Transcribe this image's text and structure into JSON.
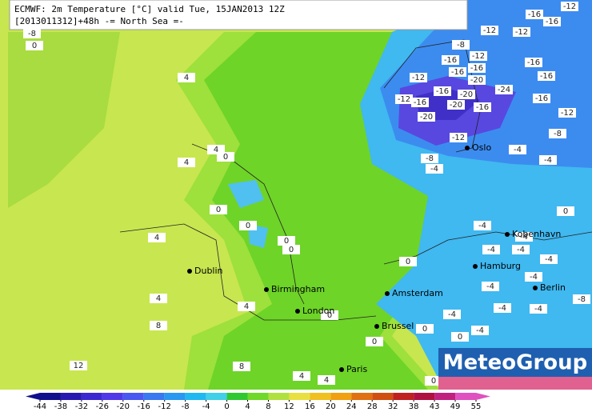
{
  "header": {
    "line1": "ECMWF: 2m Temperature [°C] valid Tue, 15JAN2013 12Z",
    "line2": "[2013011312]+48h -= North Sea =-"
  },
  "cities": [
    "Dublin",
    "Birmingham",
    "London",
    "Paris",
    "Brussel",
    "Amsterdam",
    "Hamburg",
    "Berlin",
    "Kobenhavn",
    "Oslo"
  ],
  "contour_labels": [
    -8,
    0,
    4,
    4,
    4,
    0,
    0,
    0,
    0,
    0,
    4,
    4,
    4,
    8,
    0,
    0,
    0,
    0,
    0,
    12,
    8,
    4,
    4,
    -12,
    -16,
    -16,
    -8,
    -12,
    -12,
    -12,
    -16,
    -12,
    -16,
    -16,
    -20,
    -16,
    -20,
    -24,
    -12,
    -16,
    -20,
    -20,
    -16,
    -16,
    -16,
    -16,
    -12,
    -8,
    -12,
    -8,
    -4,
    -4,
    -4,
    -4,
    -4,
    -4,
    -4,
    -4,
    -4,
    -4,
    -8,
    -4,
    -4,
    -4,
    -4,
    0,
    0
  ],
  "logo": "MeteoGroup",
  "colorbar": {
    "ticks": [
      -44,
      -38,
      -32,
      -26,
      -20,
      -16,
      -12,
      -8,
      -4,
      0,
      4,
      8,
      12,
      16,
      20,
      24,
      28,
      32,
      38,
      43,
      49,
      55
    ],
    "colors": [
      "#10108c",
      "#2818b0",
      "#3c28d0",
      "#5038e8",
      "#4858f0",
      "#3878f0",
      "#2898f0",
      "#20b8f0",
      "#40d0e8",
      "#30c830",
      "#70d828",
      "#b0e040",
      "#e8e040",
      "#f0c020",
      "#f0a010",
      "#e07010",
      "#d05010",
      "#c02020",
      "#b01040",
      "#c02080",
      "#e050c0"
    ]
  }
}
